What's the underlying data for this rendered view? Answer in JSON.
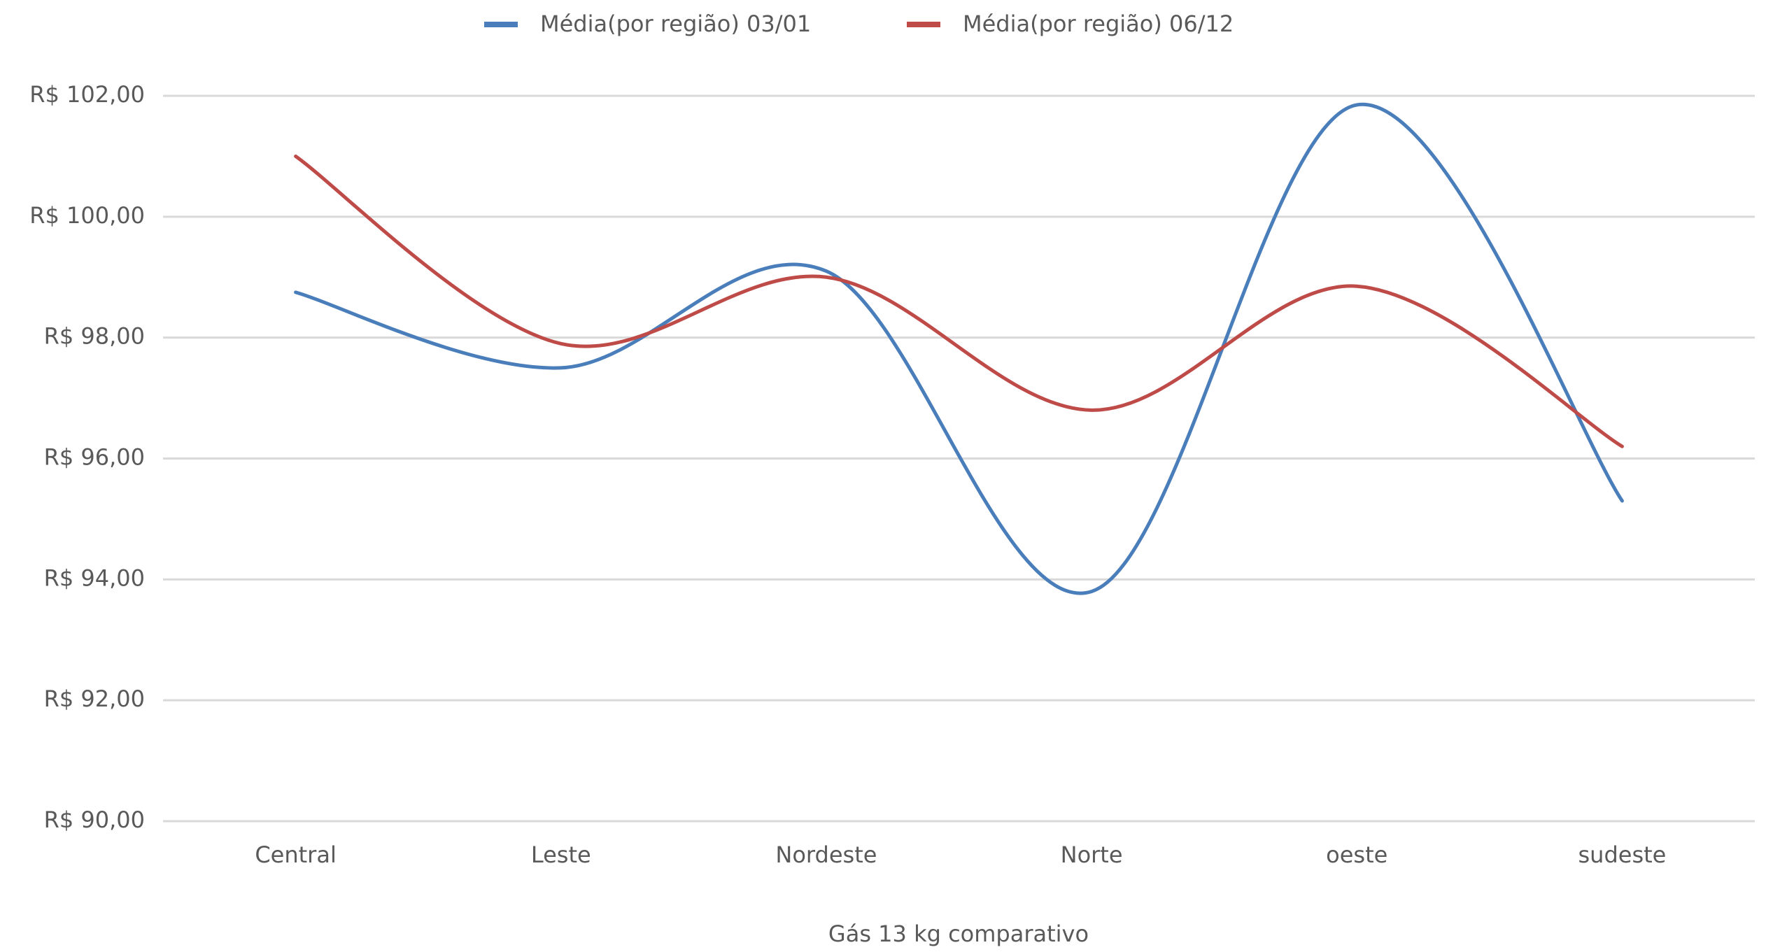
{
  "chart_data": {
    "type": "line",
    "smooth": true,
    "x_label": "Gás 13 kg comparativo",
    "categories": [
      "Central",
      "Leste",
      "Nordeste",
      "Norte",
      "oeste",
      "sudeste"
    ],
    "series": [
      {
        "name": "Média(por região) 03/01",
        "color": "#4a7ebb",
        "values": [
          98.75,
          97.5,
          99.1,
          93.8,
          101.85,
          95.3
        ]
      },
      {
        "name": "Média(por região) 06/12",
        "color": "#be4b48",
        "values": [
          101.0,
          97.9,
          99.0,
          96.8,
          98.85,
          96.2
        ]
      }
    ],
    "ylim": [
      90,
      102
    ],
    "yticks": [
      {
        "value": 90,
        "label": "R$ 90,00"
      },
      {
        "value": 92,
        "label": "R$ 92,00"
      },
      {
        "value": 94,
        "label": "R$ 94,00"
      },
      {
        "value": 96,
        "label": "R$ 96,00"
      },
      {
        "value": 98,
        "label": "R$ 98,00"
      },
      {
        "value": 100,
        "label": "R$ 100,00"
      },
      {
        "value": 102,
        "label": "R$ 102,00"
      }
    ],
    "grid": true,
    "legend": "top"
  }
}
